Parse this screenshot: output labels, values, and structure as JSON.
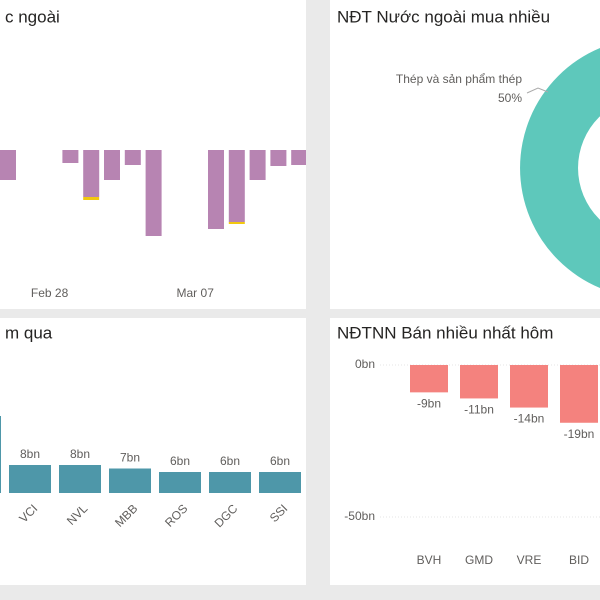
{
  "chart_data": [
    {
      "type": "bar",
      "title": "c ngoài",
      "categories": [
        null,
        null,
        "Feb 28",
        null,
        null,
        null,
        null,
        null,
        null,
        "Mar 07",
        null,
        null,
        null,
        null,
        null
      ],
      "series": [
        {
          "color": "#b784b2",
          "values": [
            -30,
            null,
            null,
            -13,
            -47,
            -30,
            -15,
            -86,
            null,
            null,
            -79,
            -72,
            -30,
            -16,
            -15
          ]
        },
        {
          "color": "#f2c80f",
          "values": [
            null,
            null,
            null,
            null,
            -3,
            null,
            null,
            null,
            null,
            null,
            null,
            -2,
            null,
            null,
            null
          ]
        }
      ],
      "ylim": [
        -140,
        0
      ]
    },
    {
      "type": "pie",
      "title": "NĐT Nước ngoài mua nhiều",
      "donut": true,
      "categories": [
        "Thép và sản phẩm thép"
      ],
      "values": [
        50
      ],
      "value_labels": [
        "50%"
      ],
      "color": "#5ec8bb"
    },
    {
      "type": "bar",
      "title": "m qua",
      "categories": [
        null,
        "VCI",
        "NVL",
        "MBB",
        "ROS",
        "DGC",
        "SSI"
      ],
      "values": [
        22,
        8,
        8,
        7,
        6,
        6,
        6
      ],
      "value_labels": [
        null,
        "8bn",
        "8bn",
        "7bn",
        "6bn",
        "6bn",
        "6bn"
      ],
      "color": "#4e97a9",
      "ylim": [
        0,
        40
      ]
    },
    {
      "type": "bar",
      "title": "NĐTNN Bán nhiều nhất hôm",
      "categories": [
        "BVH",
        "GMD",
        "VRE",
        "BID"
      ],
      "values": [
        -9,
        -11,
        -14,
        -19
      ],
      "value_labels": [
        "-9bn",
        "-11bn",
        "-14bn",
        "-19bn"
      ],
      "color": "#f4827e",
      "ylim": [
        -50,
        0
      ],
      "yticks": [
        {
          "value": 0,
          "label": "0bn"
        },
        {
          "value": -50,
          "label": "-50bn"
        }
      ],
      "grid": true
    }
  ]
}
